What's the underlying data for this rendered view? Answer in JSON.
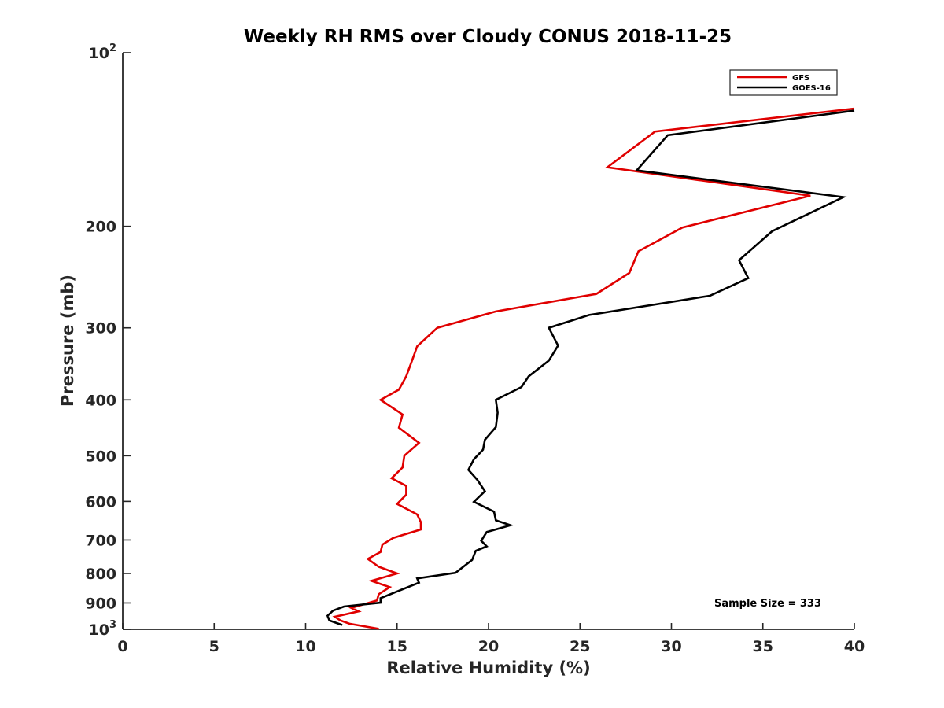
{
  "chart_data": {
    "type": "line",
    "title": "Weekly RH RMS over Cloudy CONUS 2018-11-25",
    "xlabel": "Relative Humidity (%)",
    "ylabel": "Pressure (mb)",
    "xlim": [
      0,
      40
    ],
    "ylim": [
      100,
      1000
    ],
    "y_scale": "log",
    "y_reversed": true,
    "grid": false,
    "legend_position": "top-right",
    "x_ticks": [
      "0",
      "5",
      "10",
      "15",
      "20",
      "25",
      "30",
      "35",
      "40"
    ],
    "x_tick_values": [
      0,
      5,
      10,
      15,
      20,
      25,
      30,
      35,
      40
    ],
    "y_ticks": [
      {
        "value": 100,
        "base": "10",
        "exp": "2"
      },
      {
        "value": 200,
        "label": "200"
      },
      {
        "value": 300,
        "label": "300"
      },
      {
        "value": 400,
        "label": "400"
      },
      {
        "value": 500,
        "label": "500"
      },
      {
        "value": 600,
        "label": "600"
      },
      {
        "value": 700,
        "label": "700"
      },
      {
        "value": 800,
        "label": "800"
      },
      {
        "value": 900,
        "label": "900"
      },
      {
        "value": 1000,
        "base": "10",
        "exp": "3"
      }
    ],
    "series": [
      {
        "name": "GFS",
        "color": "#e00000",
        "points": [
          [
            40.0,
            125
          ],
          [
            29.1,
            137
          ],
          [
            26.5,
            158
          ],
          [
            37.6,
            177
          ],
          [
            30.6,
            201
          ],
          [
            28.2,
            221
          ],
          [
            27.7,
            241
          ],
          [
            25.9,
            262
          ],
          [
            20.4,
            281
          ],
          [
            17.2,
            300
          ],
          [
            16.1,
            323
          ],
          [
            15.8,
            343
          ],
          [
            15.5,
            364
          ],
          [
            15.1,
            384
          ],
          [
            14.1,
            400
          ],
          [
            15.3,
            424
          ],
          [
            15.1,
            447
          ],
          [
            16.2,
            475
          ],
          [
            15.4,
            500
          ],
          [
            15.3,
            524
          ],
          [
            14.7,
            547
          ],
          [
            15.5,
            564
          ],
          [
            15.5,
            584
          ],
          [
            15.0,
            606
          ],
          [
            16.1,
            632
          ],
          [
            16.3,
            652
          ],
          [
            16.3,
            671
          ],
          [
            14.8,
            694
          ],
          [
            14.2,
            713
          ],
          [
            14.1,
            734
          ],
          [
            13.4,
            755
          ],
          [
            14.0,
            779
          ],
          [
            15.0,
            800
          ],
          [
            13.6,
            824
          ],
          [
            14.6,
            845
          ],
          [
            14.0,
            869
          ],
          [
            13.9,
            891
          ],
          [
            12.5,
            918
          ],
          [
            12.9,
            931
          ],
          [
            11.6,
            951
          ],
          [
            11.9,
            965
          ],
          [
            12.4,
            978
          ],
          [
            14.0,
            998
          ]
        ]
      },
      {
        "name": "GOES-16",
        "color": "#000000",
        "points": [
          [
            40.0,
            126
          ],
          [
            29.8,
            139
          ],
          [
            28.1,
            160
          ],
          [
            39.4,
            178
          ],
          [
            35.5,
            204
          ],
          [
            33.7,
            229
          ],
          [
            34.2,
            246
          ],
          [
            32.1,
            264
          ],
          [
            25.5,
            285
          ],
          [
            23.3,
            300
          ],
          [
            23.8,
            322
          ],
          [
            23.3,
            342
          ],
          [
            22.2,
            364
          ],
          [
            21.8,
            380
          ],
          [
            20.4,
            400
          ],
          [
            20.5,
            421
          ],
          [
            20.4,
            446
          ],
          [
            19.8,
            469
          ],
          [
            19.7,
            488
          ],
          [
            19.2,
            507
          ],
          [
            18.9,
            529
          ],
          [
            19.4,
            551
          ],
          [
            19.8,
            576
          ],
          [
            19.2,
            601
          ],
          [
            20.3,
            625
          ],
          [
            20.4,
            647
          ],
          [
            21.2,
            660
          ],
          [
            19.9,
            678
          ],
          [
            19.6,
            702
          ],
          [
            19.9,
            718
          ],
          [
            19.3,
            731
          ],
          [
            19.1,
            758
          ],
          [
            18.2,
            798
          ],
          [
            16.1,
            816
          ],
          [
            16.2,
            830
          ],
          [
            15.1,
            857
          ],
          [
            14.1,
            883
          ],
          [
            14.1,
            899
          ],
          [
            12.1,
            913
          ],
          [
            11.5,
            928
          ],
          [
            11.2,
            947
          ],
          [
            11.3,
            965
          ],
          [
            12.0,
            983
          ]
        ]
      }
    ],
    "annotations": [
      "Sample Size = 333"
    ]
  }
}
